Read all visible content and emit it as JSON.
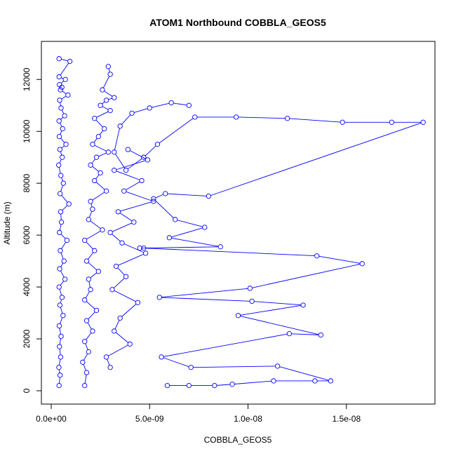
{
  "chart_data": {
    "type": "scatter",
    "title": "ATOM1 Northbound COBBLA_GEOS5",
    "xlabel": "COBBLA_GEOS5",
    "ylabel": "Altitude (m)",
    "xlim": [
      0,
      1.9e-08
    ],
    "ylim": [
      0,
      12900
    ],
    "x_ticks": [
      {
        "value": 0,
        "label": "0.0e+00"
      },
      {
        "value": 5e-09,
        "label": "5.0e-09"
      },
      {
        "value": 1e-08,
        "label": "1.0e-08"
      },
      {
        "value": 1.5e-08,
        "label": "1.5e-08"
      }
    ],
    "y_ticks": [
      {
        "value": 0,
        "label": "0"
      },
      {
        "value": 2000,
        "label": "2000"
      },
      {
        "value": 4000,
        "label": "4000"
      },
      {
        "value": 6000,
        "label": "6000"
      },
      {
        "value": 8000,
        "label": "8000"
      },
      {
        "value": 10000,
        "label": "10000"
      },
      {
        "value": 12000,
        "label": "12000"
      }
    ],
    "series_color": "#0000ff",
    "style": "points-and-lines",
    "grid": false,
    "legend": "none",
    "series": [
      {
        "x": [
          4e-10,
          4.5e-10,
          3.9e-10,
          4.8e-10,
          4.2e-10,
          5e-10,
          4.1e-10,
          6e-10,
          4.4e-10,
          5.5e-10,
          4e-10,
          7e-10,
          4.3e-10,
          6.5e-10,
          4.6e-10,
          8e-10,
          4.2e-10,
          5.2e-10,
          4.8e-10,
          9e-10,
          4.5e-10,
          6.2e-10,
          4.9e-10,
          3.8e-10,
          5.6e-10,
          4.4e-10,
          7.5e-10,
          4.1e-10,
          5.8e-10,
          4e-10,
          6.8e-10,
          5e-10,
          4.3e-10,
          8.5e-10,
          4.7e-10,
          5.4e-10,
          4.2e-10,
          7.2e-10,
          4e-10,
          9.5e-10,
          4e-10
        ],
        "y": [
          200,
          600,
          900,
          1300,
          1700,
          2100,
          2500,
          2900,
          3300,
          3600,
          4000,
          4300,
          4700,
          5000,
          5400,
          5800,
          6100,
          6500,
          6900,
          7200,
          7600,
          8000,
          8300,
          8700,
          9000,
          9300,
          9500,
          9800,
          10100,
          10400,
          10600,
          10900,
          11200,
          11400,
          11600,
          11700,
          11800,
          12000,
          12100,
          12700,
          12800
        ]
      },
      {
        "x": [
          1.7e-09,
          1.8e-09,
          1.6e-09,
          1.9e-09,
          1.7e-09,
          2.1e-09,
          1.8e-09,
          2.3e-09,
          1.7e-09,
          2e-09,
          1.9e-09,
          2.4e-09,
          1.8e-09,
          2.2e-09,
          1.7e-09,
          2.6e-09,
          1.9e-09,
          2.1e-09,
          2e-09,
          2.8e-09,
          2.2e-09,
          2.5e-09,
          2e-09,
          2.3e-09,
          2.9e-09,
          2.1e-09,
          2.4e-09,
          2.7e-09,
          2.2e-09,
          3e-09,
          2.5e-09,
          2.8e-09,
          3.2e-09,
          2.6e-09,
          3e-09,
          2.9e-09
        ],
        "y": [
          200,
          700,
          1100,
          1500,
          1900,
          2300,
          2700,
          3100,
          3500,
          3900,
          4300,
          4600,
          5000,
          5400,
          5800,
          6200,
          6600,
          7000,
          7300,
          7700,
          8100,
          8400,
          8700,
          9000,
          9200,
          9500,
          9800,
          10100,
          10500,
          10800,
          11000,
          11200,
          11300,
          11600,
          12200,
          12500
        ]
      },
      {
        "x": [
          5.9e-09,
          7e-09,
          8.3e-09,
          9.2e-09,
          1.13e-08,
          1.34e-08,
          1.42e-08,
          1.15e-08,
          7.1e-09,
          5.6e-09,
          1.21e-08,
          1.37e-08,
          9.5e-09,
          1.28e-08,
          1.02e-08,
          5.5e-09,
          1.01e-08,
          1.58e-08,
          1.35e-08,
          4.7e-09,
          4.5e-09,
          8.6e-09,
          6e-09,
          7.8e-09,
          6.3e-09,
          5.2e-09,
          5.8e-09,
          8e-09,
          1.89e-08,
          1.73e-08,
          1.48e-08,
          1.2e-08,
          9.4e-09,
          7.3e-09,
          5.4e-09,
          4.7e-09,
          3.8e-09,
          3.2e-09,
          3.5e-09,
          4.1e-09,
          5e-09,
          6.1e-09,
          7e-09
        ],
        "y": [
          200,
          200,
          200,
          250,
          380,
          380,
          380,
          950,
          900,
          1300,
          2200,
          2150,
          2900,
          3300,
          3450,
          3600,
          3950,
          4900,
          5200,
          5500,
          5500,
          5550,
          5900,
          6300,
          6600,
          7400,
          7600,
          7500,
          10350,
          10350,
          10350,
          10500,
          10550,
          10550,
          9500,
          9000,
          8500,
          9200,
          10200,
          10700,
          10900,
          11100,
          11000
        ]
      },
      {
        "x": [
          3e-09,
          2.8e-09,
          4e-09,
          3.2e-09,
          3.5e-09,
          4.4e-09,
          3.1e-09,
          3.8e-09,
          3.3e-09,
          4.8e-09,
          3.6e-09,
          3e-09,
          4.2e-09,
          3.4e-09,
          5.2e-09,
          3.7e-09,
          4.6e-09,
          3.2e-09,
          4.9e-09,
          3.9e-09
        ],
        "y": [
          900,
          1300,
          1800,
          2300,
          2800,
          3400,
          3900,
          4400,
          4800,
          5300,
          5700,
          6100,
          6500,
          6900,
          7300,
          7700,
          8100,
          8500,
          8900,
          9300
        ]
      }
    ]
  }
}
